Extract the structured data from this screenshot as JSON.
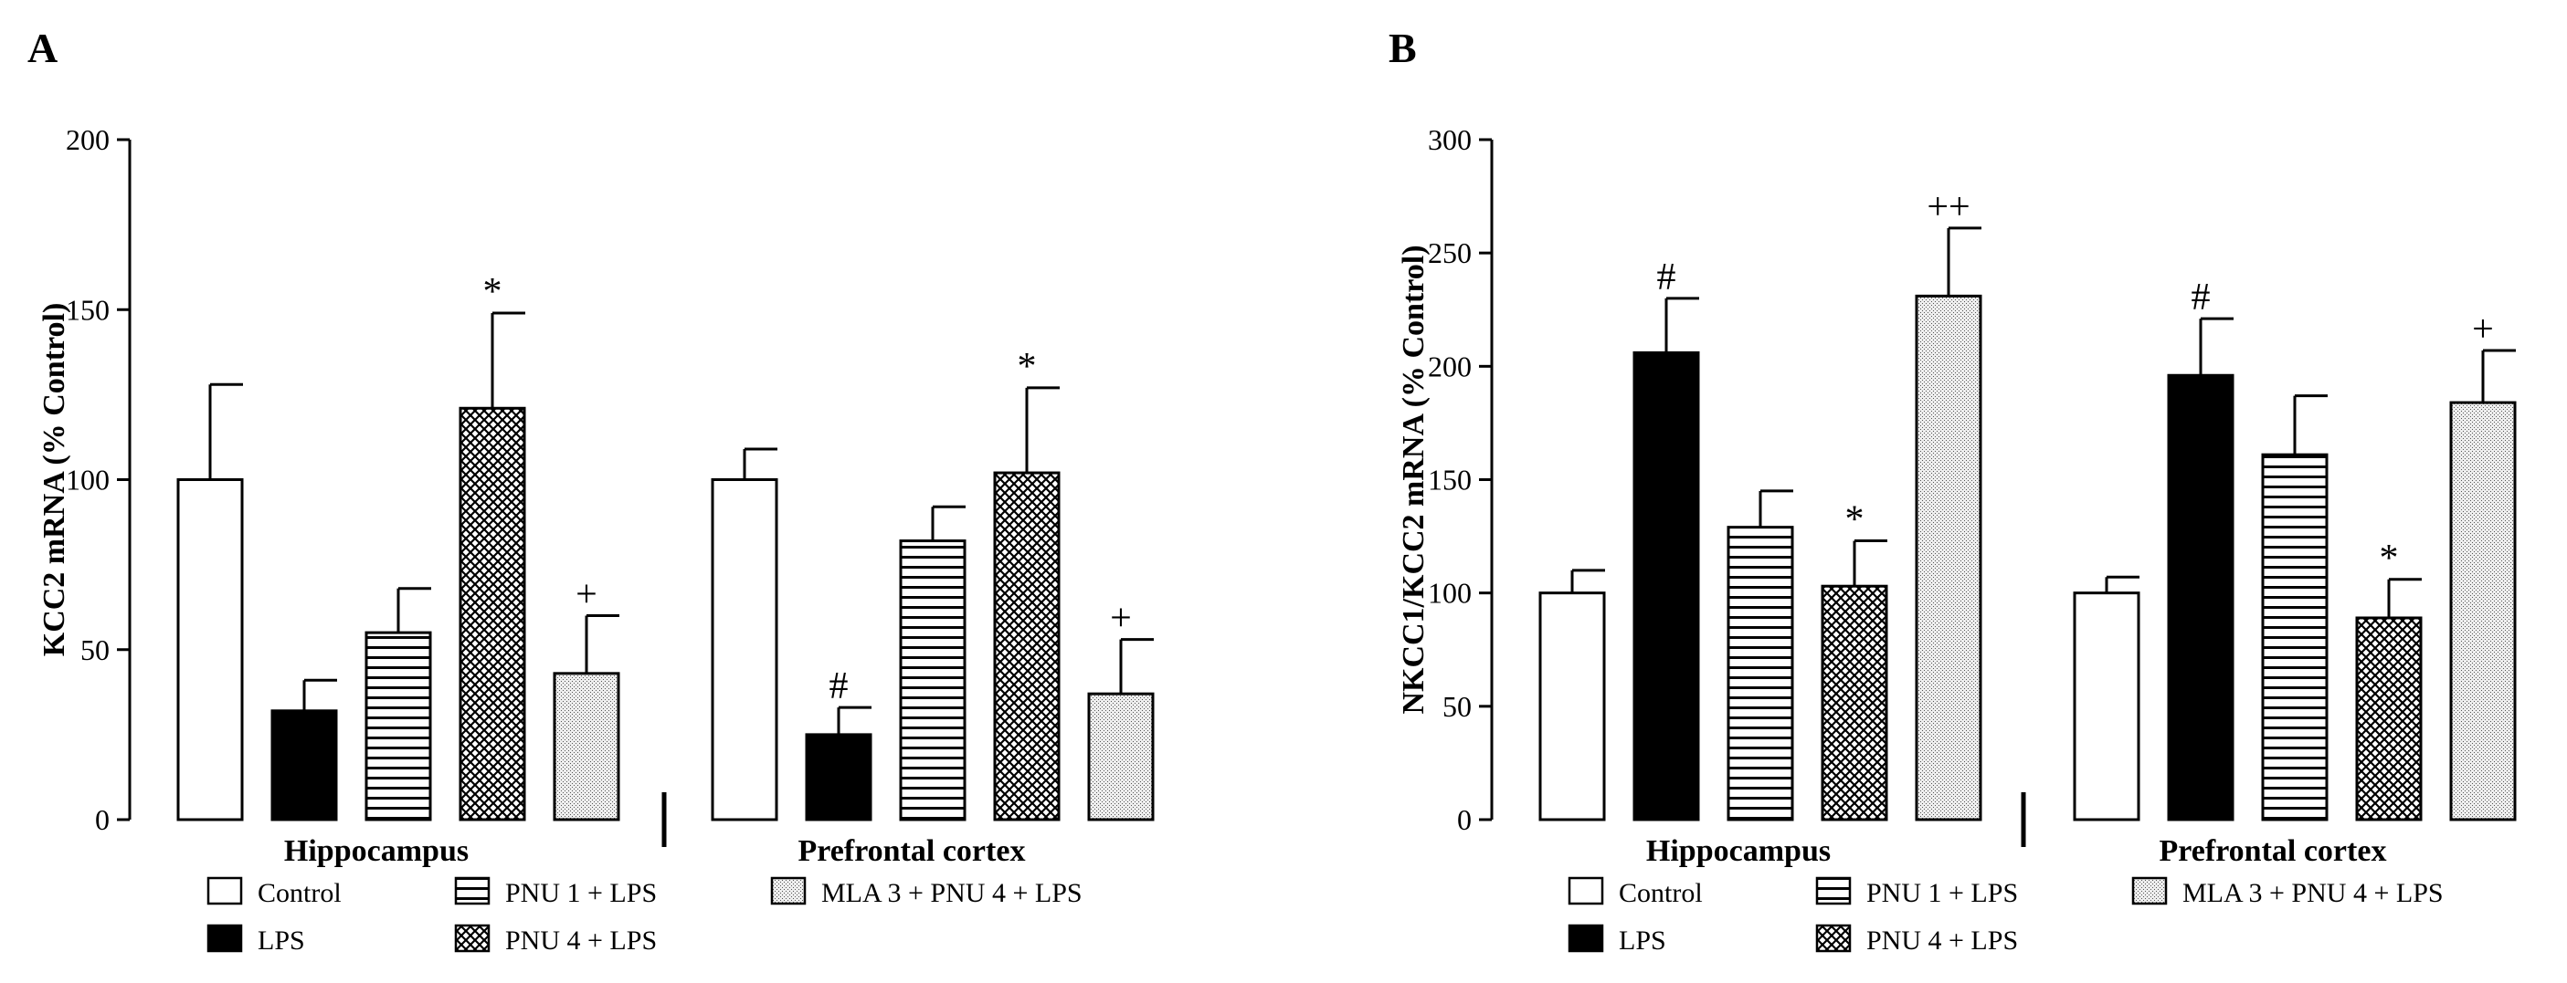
{
  "patterns": {
    "Control": "white",
    "LPS": "black",
    "PNU 1 + LPS": "hlines",
    "PNU 4 + LPS": "crosshatch",
    "MLA 3 + PNU 4 + LPS": "stipple"
  },
  "colors": {
    "bar_stroke": "#000000",
    "black_fill": "#000000",
    "white_fill": "#ffffff",
    "stipple_fill": "#d9d9d9"
  },
  "legend": [
    {
      "label": "Control"
    },
    {
      "label": "PNU 1 + LPS"
    },
    {
      "label": "MLA 3 + PNU 4 + LPS"
    },
    {
      "label": "LPS"
    },
    {
      "label": "PNU 4 + LPS"
    }
  ],
  "chart_data": [
    {
      "type": "bar",
      "panel": "A",
      "ylabel": "KCC2 mRNA (% Control)",
      "ylim": [
        0,
        200
      ],
      "yticks": [
        0,
        50,
        100,
        150,
        200
      ],
      "groups": [
        "Hippocampus",
        "Prefrontal cortex"
      ],
      "series": [
        {
          "name": "Control",
          "values": [
            100,
            100
          ],
          "errors": [
            28,
            9
          ],
          "annotations": [
            "",
            ""
          ]
        },
        {
          "name": "LPS",
          "values": [
            32,
            25
          ],
          "errors": [
            9,
            8
          ],
          "annotations": [
            "",
            "#"
          ]
        },
        {
          "name": "PNU 1 + LPS",
          "values": [
            55,
            82
          ],
          "errors": [
            13,
            10
          ],
          "annotations": [
            "",
            ""
          ]
        },
        {
          "name": "PNU 4 + LPS",
          "values": [
            121,
            102
          ],
          "errors": [
            28,
            25
          ],
          "annotations": [
            "*",
            "*"
          ]
        },
        {
          "name": "MLA 3 + PNU 4 + LPS",
          "values": [
            43,
            37
          ],
          "errors": [
            17,
            16
          ],
          "annotations": [
            "+",
            "+"
          ]
        }
      ]
    },
    {
      "type": "bar",
      "panel": "B",
      "ylabel": "NKCC1/KCC2 mRNA (% Control)",
      "ylim": [
        0,
        300
      ],
      "yticks": [
        0,
        50,
        100,
        150,
        200,
        250,
        300
      ],
      "groups": [
        "Hippocampus",
        "Prefrontal cortex"
      ],
      "series": [
        {
          "name": "Control",
          "values": [
            100,
            100
          ],
          "errors": [
            10,
            7
          ],
          "annotations": [
            "",
            ""
          ]
        },
        {
          "name": "LPS",
          "values": [
            206,
            196
          ],
          "errors": [
            24,
            25
          ],
          "annotations": [
            "#",
            "#"
          ]
        },
        {
          "name": "PNU 1 + LPS",
          "values": [
            129,
            161
          ],
          "errors": [
            16,
            26
          ],
          "annotations": [
            "",
            ""
          ]
        },
        {
          "name": "PNU 4 + LPS",
          "values": [
            103,
            89
          ],
          "errors": [
            20,
            17
          ],
          "annotations": [
            "*",
            "*"
          ]
        },
        {
          "name": "MLA 3 + PNU 4 + LPS",
          "values": [
            231,
            184
          ],
          "errors": [
            30,
            23
          ],
          "annotations": [
            "++",
            "+"
          ]
        }
      ]
    }
  ]
}
